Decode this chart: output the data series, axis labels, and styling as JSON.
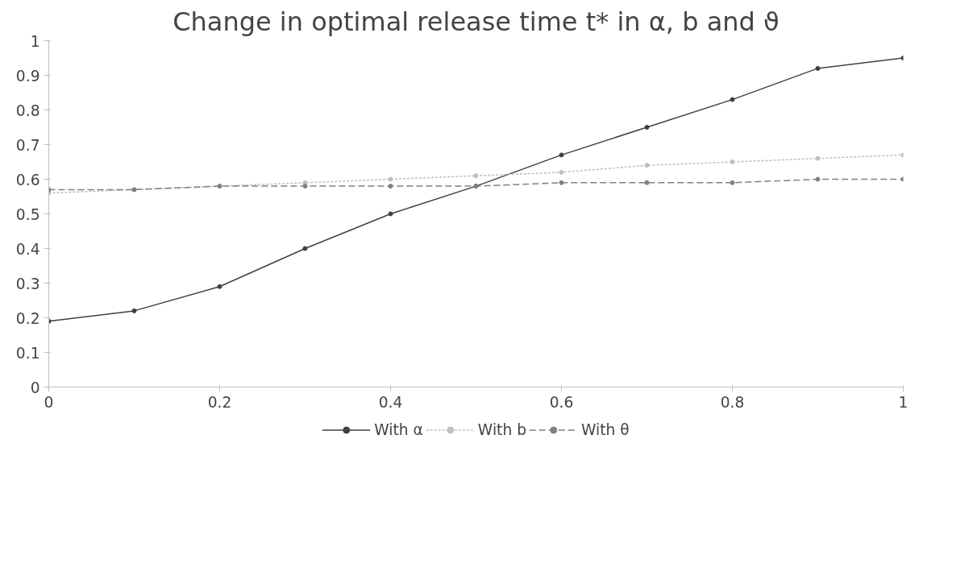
{
  "chart_data": {
    "type": "line",
    "title": "Change in optimal release time t* in α, b and ϑ",
    "x": [
      0,
      0.1,
      0.2,
      0.3,
      0.4,
      0.5,
      0.6,
      0.7,
      0.8,
      0.9,
      1
    ],
    "xlim": [
      0,
      1
    ],
    "xticks": [
      0,
      0.2,
      0.4,
      0.6,
      0.8,
      1
    ],
    "ylim": [
      0,
      1
    ],
    "yticks": [
      0,
      0.1,
      0.2,
      0.3,
      0.4,
      0.5,
      0.6,
      0.7,
      0.8,
      0.9,
      1
    ],
    "grid": false,
    "legend": "bottom",
    "marker": "circle",
    "series": [
      {
        "name": "With α",
        "color": "#404040",
        "line_style": "solid",
        "values": [
          0.19,
          0.22,
          0.29,
          0.4,
          0.5,
          0.58,
          0.67,
          0.75,
          0.83,
          0.92,
          0.95
        ]
      },
      {
        "name": "With b",
        "color": "#bfbfbf",
        "line_style": "dotted",
        "values": [
          0.56,
          0.57,
          0.58,
          0.59,
          0.6,
          0.61,
          0.62,
          0.64,
          0.65,
          0.66,
          0.67
        ]
      },
      {
        "name": "With θ",
        "color": "#808080",
        "line_style": "dashed",
        "values": [
          0.57,
          0.57,
          0.58,
          0.58,
          0.58,
          0.58,
          0.59,
          0.59,
          0.59,
          0.6,
          0.6
        ]
      }
    ]
  }
}
